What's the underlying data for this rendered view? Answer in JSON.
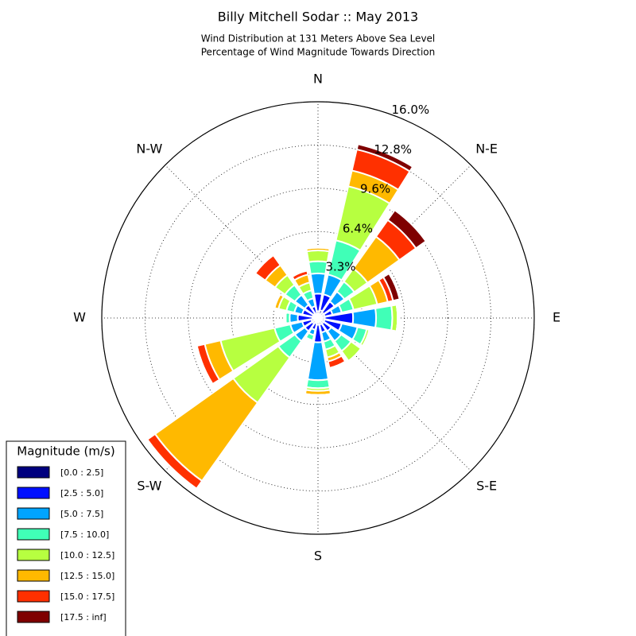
{
  "chart_data": {
    "type": "rose",
    "title": "Billy Mitchell Sodar :: May 2013",
    "subtitle": [
      "Wind Distribution at 131 Meters Above Sea Level",
      "Percentage of Wind Magnitude Towards Direction"
    ],
    "categories": [
      "N",
      null,
      "N-E",
      null,
      "E",
      null,
      "S-E",
      null,
      "S",
      null,
      "S-W",
      null,
      "W",
      null,
      "N-W",
      null
    ],
    "rlim": [
      0,
      16
    ],
    "rticks": [
      {
        "value": 3.3,
        "label": "3.3%"
      },
      {
        "value": 6.4,
        "label": "6.4%"
      },
      {
        "value": 9.6,
        "label": "9.6%"
      },
      {
        "value": 12.8,
        "label": "12.8%"
      },
      {
        "value": 16.0,
        "label": "16.0%"
      }
    ],
    "grid": true,
    "legend_title": "Magnitude (m/s)",
    "legend_position": "lower left",
    "series": [
      {
        "name": "[0.0 : 2.5]",
        "color": "#00007f",
        "values": [
          0.5,
          0.6,
          0.5,
          0.5,
          0.5,
          0.5,
          0.5,
          0.5,
          0.5,
          0.4,
          0.5,
          0.5,
          0.4,
          0.4,
          0.4,
          0.3
        ]
      },
      {
        "name": "[2.5 : 5.0]",
        "color": "#0010ff",
        "values": [
          1.3,
          1.2,
          1.0,
          0.6,
          2.1,
          1.3,
          0.7,
          0.6,
          1.3,
          0.5,
          0.7,
          0.7,
          1.1,
          0.8,
          0.8,
          0.6
        ]
      },
      {
        "name": "[5.0 : 7.5]",
        "color": "#00a4ff",
        "values": [
          1.5,
          1.5,
          0.9,
          0.7,
          1.7,
          1.2,
          0.9,
          0.7,
          2.8,
          0.4,
          0.9,
          0.9,
          0.6,
          0.6,
          0.9,
          0.6
        ]
      },
      {
        "name": "[7.5 : 10.0]",
        "color": "#40ffb7",
        "values": [
          0.9,
          2.6,
          0.9,
          0.9,
          1.2,
          0.7,
          0.9,
          0.6,
          0.6,
          0.4,
          1.5,
          1.2,
          0.3,
          0.6,
          0.9,
          0.6
        ]
      },
      {
        "name": "[10.0 : 12.5]",
        "color": "#b7ff40",
        "values": [
          0.8,
          4.1,
          1.2,
          1.8,
          0.4,
          0.2,
          0.9,
          0.6,
          0.2,
          0.1,
          4.1,
          4.1,
          0,
          0.6,
          0.9,
          0.6
        ]
      },
      {
        "name": "[12.5 : 15.0]",
        "color": "#ffb900",
        "values": [
          0.2,
          1.2,
          2.9,
          0.8,
          0,
          0,
          0,
          0.3,
          0.3,
          0,
          7.1,
          1.2,
          0,
          0.3,
          0.9,
          0.6
        ]
      },
      {
        "name": "[15.0 : 17.5]",
        "color": "#ff3000",
        "values": [
          0.1,
          1.6,
          1.5,
          0.4,
          0,
          0,
          0,
          0.5,
          0,
          0,
          0.7,
          0.6,
          0,
          0,
          0.9,
          0.3
        ]
      },
      {
        "name": "[17.5 : inf]",
        "color": "#7f0000",
        "values": [
          0,
          0.4,
          0.9,
          0.5,
          0,
          0,
          0,
          0,
          0,
          0,
          0,
          0,
          0,
          0,
          0,
          0
        ]
      }
    ]
  }
}
